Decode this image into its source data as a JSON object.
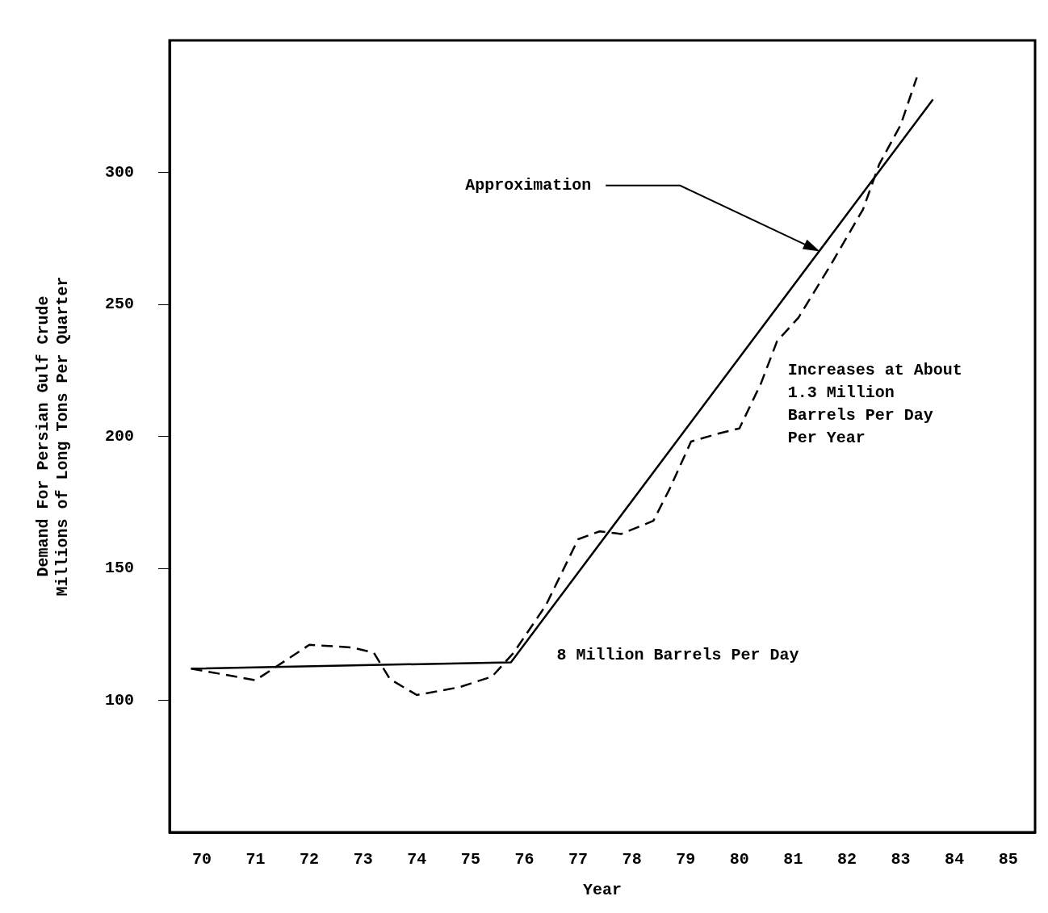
{
  "chart_data": {
    "type": "line",
    "xlabel": "Year",
    "ylabel": "Demand For Persian Gulf Crude\nMillions of Long Tons Per Quarter",
    "xlim": [
      69.4,
      85.5
    ],
    "xticks": [
      70,
      71,
      72,
      73,
      74,
      75,
      76,
      77,
      78,
      79,
      80,
      81,
      82,
      83,
      84,
      85
    ],
    "ylim": [
      50,
      350
    ],
    "yticks": [
      100,
      150,
      200,
      250,
      300
    ],
    "grid": false,
    "legend": false,
    "marker": "none",
    "series": [
      {
        "color": "#000000",
        "line_style": "solid",
        "x": [
          69.8,
          75.75,
          83.6
        ],
        "values": [
          112,
          114.4,
          327.6
        ]
      },
      {
        "color": "#000000",
        "line_style": "dashed",
        "x": [
          69.8,
          71,
          72,
          72.8,
          73.2,
          73.5,
          74,
          74.8,
          75.4,
          75.8,
          76.4,
          77,
          77.4,
          77.8,
          78.4,
          78.7,
          79.1,
          79.6,
          80,
          80.4,
          80.7,
          81.1,
          81.7,
          82.3,
          82.6,
          83,
          83.3
        ],
        "values": [
          112,
          107.6,
          121,
          120,
          118,
          108,
          102,
          105,
          109,
          118,
          136,
          161,
          164,
          163,
          168,
          180,
          198,
          201,
          203,
          220,
          236,
          245,
          265,
          286,
          303,
          318,
          336
        ]
      }
    ],
    "annotations": [
      "Approximation",
      "Increases at About\n1.3 Million\nBarrels Per Day\nPer Year",
      "8 Million Barrels Per Day"
    ]
  }
}
